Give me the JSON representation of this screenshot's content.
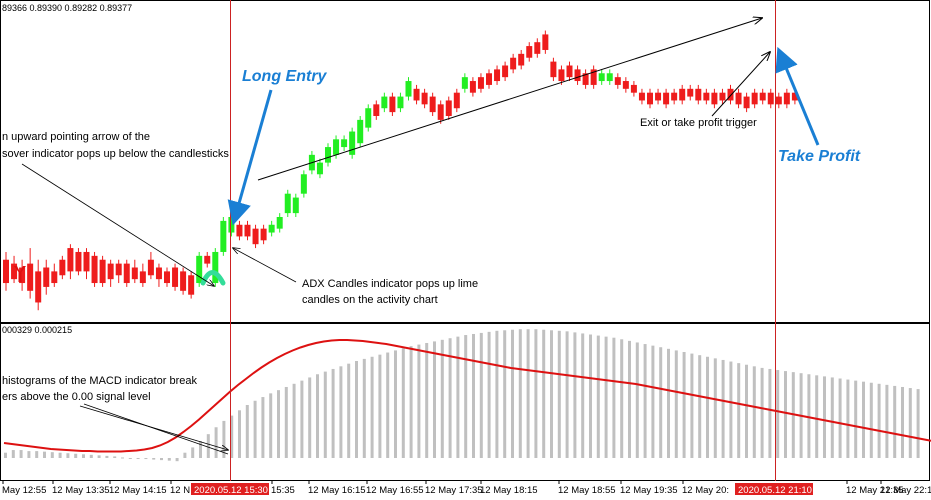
{
  "chart_data": [
    {
      "type": "candlestick",
      "header": "89366 0.89390 0.89282 0.89377",
      "bull_color": "#22ee22",
      "bear_color": "#ee1c1c",
      "candles": [
        {
          "o": 0.8935,
          "c": 0.8929,
          "h": 0.8937,
          "l": 0.8927
        },
        {
          "o": 0.8934,
          "c": 0.893,
          "h": 0.8936,
          "l": 0.8929
        },
        {
          "o": 0.8933,
          "c": 0.8929,
          "h": 0.8935,
          "l": 0.8927
        },
        {
          "o": 0.8934,
          "c": 0.8927,
          "h": 0.8938,
          "l": 0.8925
        },
        {
          "o": 0.8932,
          "c": 0.8924,
          "h": 0.8935,
          "l": 0.8922
        },
        {
          "o": 0.8933,
          "c": 0.8928,
          "h": 0.8935,
          "l": 0.8926
        },
        {
          "o": 0.8932,
          "c": 0.8929,
          "h": 0.8934,
          "l": 0.8928
        },
        {
          "o": 0.8935,
          "c": 0.8931,
          "h": 0.8936,
          "l": 0.893
        },
        {
          "o": 0.8938,
          "c": 0.8932,
          "h": 0.8939,
          "l": 0.893
        },
        {
          "o": 0.8937,
          "c": 0.8932,
          "h": 0.8938,
          "l": 0.8931
        },
        {
          "o": 0.8937,
          "c": 0.8932,
          "h": 0.8938,
          "l": 0.893
        },
        {
          "o": 0.8936,
          "c": 0.8929,
          "h": 0.8937,
          "l": 0.8928
        },
        {
          "o": 0.8935,
          "c": 0.8929,
          "h": 0.8936,
          "l": 0.8928
        },
        {
          "o": 0.8934,
          "c": 0.893,
          "h": 0.8935,
          "l": 0.8928
        },
        {
          "o": 0.8934,
          "c": 0.8931,
          "h": 0.8935,
          "l": 0.8929
        },
        {
          "o": 0.8934,
          "c": 0.8929,
          "h": 0.8935,
          "l": 0.8928
        },
        {
          "o": 0.8933,
          "c": 0.893,
          "h": 0.8935,
          "l": 0.8929
        },
        {
          "o": 0.8932,
          "c": 0.8929,
          "h": 0.8934,
          "l": 0.8928
        },
        {
          "o": 0.8935,
          "c": 0.8931,
          "h": 0.8937,
          "l": 0.893
        },
        {
          "o": 0.8933,
          "c": 0.893,
          "h": 0.8934,
          "l": 0.8928
        },
        {
          "o": 0.8932,
          "c": 0.8929,
          "h": 0.8933,
          "l": 0.8928
        },
        {
          "o": 0.8933,
          "c": 0.8928,
          "h": 0.8934,
          "l": 0.8927
        },
        {
          "o": 0.8932,
          "c": 0.8927,
          "h": 0.8933,
          "l": 0.8926
        },
        {
          "o": 0.8931,
          "c": 0.8926,
          "h": 0.8932,
          "l": 0.8925
        },
        {
          "o": 0.8929,
          "c": 0.8936,
          "h": 0.8937,
          "l": 0.8928
        },
        {
          "o": 0.8936,
          "c": 0.8934,
          "h": 0.8937,
          "l": 0.8933
        },
        {
          "o": 0.8929,
          "c": 0.8937,
          "h": 0.8938,
          "l": 0.8928
        },
        {
          "o": 0.8937,
          "c": 0.8945,
          "h": 0.8946,
          "l": 0.8936
        },
        {
          "o": 0.8942,
          "c": 0.8946,
          "h": 0.8947,
          "l": 0.8941
        },
        {
          "o": 0.8944,
          "c": 0.8941,
          "h": 0.8945,
          "l": 0.894
        },
        {
          "o": 0.8944,
          "c": 0.8941,
          "h": 0.8945,
          "l": 0.894
        },
        {
          "o": 0.8943,
          "c": 0.8939,
          "h": 0.8944,
          "l": 0.8938
        },
        {
          "o": 0.8943,
          "c": 0.894,
          "h": 0.8944,
          "l": 0.8939
        },
        {
          "o": 0.8942,
          "c": 0.8944,
          "h": 0.8945,
          "l": 0.8941
        },
        {
          "o": 0.8943,
          "c": 0.8946,
          "h": 0.8947,
          "l": 0.8942
        },
        {
          "o": 0.8947,
          "c": 0.8952,
          "h": 0.8953,
          "l": 0.8946
        },
        {
          "o": 0.8947,
          "c": 0.8951,
          "h": 0.8952,
          "l": 0.8946
        },
        {
          "o": 0.8952,
          "c": 0.8957,
          "h": 0.8958,
          "l": 0.8951
        },
        {
          "o": 0.8958,
          "c": 0.8962,
          "h": 0.8963,
          "l": 0.8957
        },
        {
          "o": 0.8957,
          "c": 0.896,
          "h": 0.8961,
          "l": 0.8956
        },
        {
          "o": 0.896,
          "c": 0.8964,
          "h": 0.8965,
          "l": 0.8959
        },
        {
          "o": 0.8962,
          "c": 0.8966,
          "h": 0.8967,
          "l": 0.8961
        },
        {
          "o": 0.8964,
          "c": 0.8966,
          "h": 0.8967,
          "l": 0.8963
        },
        {
          "o": 0.8962,
          "c": 0.8968,
          "h": 0.8969,
          "l": 0.8961
        },
        {
          "o": 0.8965,
          "c": 0.8971,
          "h": 0.8972,
          "l": 0.8964
        },
        {
          "o": 0.8969,
          "c": 0.8974,
          "h": 0.8975,
          "l": 0.8968
        },
        {
          "o": 0.8975,
          "c": 0.8972,
          "h": 0.8976,
          "l": 0.8971
        },
        {
          "o": 0.8974,
          "c": 0.8977,
          "h": 0.8978,
          "l": 0.8973
        },
        {
          "o": 0.8977,
          "c": 0.8973,
          "h": 0.8978,
          "l": 0.8972
        },
        {
          "o": 0.8974,
          "c": 0.8977,
          "h": 0.8978,
          "l": 0.8973
        },
        {
          "o": 0.8977,
          "c": 0.8981,
          "h": 0.8982,
          "l": 0.8976
        },
        {
          "o": 0.8979,
          "c": 0.8976,
          "h": 0.898,
          "l": 0.8975
        },
        {
          "o": 0.8978,
          "c": 0.8975,
          "h": 0.8979,
          "l": 0.8974
        },
        {
          "o": 0.8977,
          "c": 0.8973,
          "h": 0.8978,
          "l": 0.8972
        },
        {
          "o": 0.8975,
          "c": 0.8971,
          "h": 0.8976,
          "l": 0.897
        },
        {
          "o": 0.8976,
          "c": 0.8972,
          "h": 0.8977,
          "l": 0.8971
        },
        {
          "o": 0.8978,
          "c": 0.8974,
          "h": 0.8979,
          "l": 0.8973
        },
        {
          "o": 0.8979,
          "c": 0.8982,
          "h": 0.8983,
          "l": 0.8978
        },
        {
          "o": 0.8981,
          "c": 0.8978,
          "h": 0.8982,
          "l": 0.8977
        },
        {
          "o": 0.8982,
          "c": 0.8979,
          "h": 0.8983,
          "l": 0.8978
        },
        {
          "o": 0.8983,
          "c": 0.898,
          "h": 0.8984,
          "l": 0.8979
        },
        {
          "o": 0.8984,
          "c": 0.8981,
          "h": 0.8985,
          "l": 0.898
        },
        {
          "o": 0.8985,
          "c": 0.8982,
          "h": 0.8986,
          "l": 0.8981
        },
        {
          "o": 0.8987,
          "c": 0.8984,
          "h": 0.8988,
          "l": 0.8983
        },
        {
          "o": 0.8988,
          "c": 0.8985,
          "h": 0.8989,
          "l": 0.8984
        },
        {
          "o": 0.899,
          "c": 0.8987,
          "h": 0.8991,
          "l": 0.8986
        },
        {
          "o": 0.8991,
          "c": 0.8988,
          "h": 0.8992,
          "l": 0.8987
        },
        {
          "o": 0.8993,
          "c": 0.8989,
          "h": 0.8994,
          "l": 0.8988
        },
        {
          "o": 0.8986,
          "c": 0.8982,
          "h": 0.8987,
          "l": 0.8981
        },
        {
          "o": 0.8984,
          "c": 0.8981,
          "h": 0.8985,
          "l": 0.898
        },
        {
          "o": 0.8985,
          "c": 0.8982,
          "h": 0.8986,
          "l": 0.8981
        },
        {
          "o": 0.8984,
          "c": 0.8981,
          "h": 0.8985,
          "l": 0.898
        },
        {
          "o": 0.8983,
          "c": 0.898,
          "h": 0.8984,
          "l": 0.8979
        },
        {
          "o": 0.8984,
          "c": 0.898,
          "h": 0.8985,
          "l": 0.8979
        },
        {
          "o": 0.8981,
          "c": 0.8983,
          "h": 0.8984,
          "l": 0.898
        },
        {
          "o": 0.8981,
          "c": 0.8983,
          "h": 0.8984,
          "l": 0.898
        },
        {
          "o": 0.8982,
          "c": 0.898,
          "h": 0.8983,
          "l": 0.8979
        },
        {
          "o": 0.8981,
          "c": 0.8979,
          "h": 0.8982,
          "l": 0.8978
        },
        {
          "o": 0.898,
          "c": 0.8978,
          "h": 0.8981,
          "l": 0.8977
        },
        {
          "o": 0.8978,
          "c": 0.8976,
          "h": 0.8979,
          "l": 0.8975
        },
        {
          "o": 0.8978,
          "c": 0.8975,
          "h": 0.8979,
          "l": 0.8974
        },
        {
          "o": 0.8978,
          "c": 0.8976,
          "h": 0.8979,
          "l": 0.8975
        },
        {
          "o": 0.8978,
          "c": 0.8975,
          "h": 0.8979,
          "l": 0.8974
        },
        {
          "o": 0.8978,
          "c": 0.8976,
          "h": 0.8979,
          "l": 0.8975
        },
        {
          "o": 0.8979,
          "c": 0.8976,
          "h": 0.898,
          "l": 0.8975
        },
        {
          "o": 0.8979,
          "c": 0.8977,
          "h": 0.898,
          "l": 0.8976
        },
        {
          "o": 0.8979,
          "c": 0.8976,
          "h": 0.898,
          "l": 0.8975
        },
        {
          "o": 0.8978,
          "c": 0.8976,
          "h": 0.8979,
          "l": 0.8975
        },
        {
          "o": 0.8978,
          "c": 0.8975,
          "h": 0.8979,
          "l": 0.8974
        },
        {
          "o": 0.8978,
          "c": 0.8976,
          "h": 0.8979,
          "l": 0.8975
        },
        {
          "o": 0.8979,
          "c": 0.8976,
          "h": 0.898,
          "l": 0.8975
        },
        {
          "o": 0.8978,
          "c": 0.8975,
          "h": 0.8979,
          "l": 0.8974
        },
        {
          "o": 0.8977,
          "c": 0.8974,
          "h": 0.8978,
          "l": 0.8973
        },
        {
          "o": 0.8978,
          "c": 0.8975,
          "h": 0.8979,
          "l": 0.8974
        },
        {
          "o": 0.8978,
          "c": 0.8976,
          "h": 0.8979,
          "l": 0.8975
        },
        {
          "o": 0.8978,
          "c": 0.8975,
          "h": 0.8979,
          "l": 0.8974
        },
        {
          "o": 0.8977,
          "c": 0.8975,
          "h": 0.8978,
          "l": 0.8974
        },
        {
          "o": 0.8978,
          "c": 0.8975,
          "h": 0.8979,
          "l": 0.8974
        },
        {
          "o": 0.8978,
          "c": 0.8976,
          "h": 0.8979,
          "l": 0.8975
        }
      ]
    },
    {
      "type": "bar",
      "header": "000329 0.000215",
      "histogram": [
        10,
        15,
        15,
        13,
        13,
        12,
        11,
        10,
        9,
        8,
        7,
        6,
        5,
        4,
        3,
        1,
        0,
        -1,
        -2,
        -3,
        -4,
        -5,
        -6,
        10,
        20,
        32,
        45,
        58,
        70,
        80,
        90,
        100,
        108,
        115,
        122,
        128,
        134,
        140,
        146,
        152,
        158,
        163,
        168,
        173,
        178,
        183,
        187,
        191,
        195,
        199,
        203,
        207,
        211,
        214,
        217,
        220,
        223,
        226,
        229,
        232,
        234,
        236,
        238,
        240,
        241,
        242,
        243,
        243,
        243,
        242,
        241,
        240,
        239,
        237,
        235,
        233,
        231,
        229,
        227,
        224,
        221,
        218,
        215,
        212,
        209,
        206,
        203,
        200,
        197,
        194,
        191,
        188,
        185,
        182,
        179,
        176,
        173,
        170,
        168,
        166,
        164,
        162,
        160,
        158,
        156,
        154,
        152,
        150,
        148,
        146,
        144,
        142,
        140,
        138,
        136,
        134,
        132,
        130
      ],
      "signal": [
        30,
        28,
        26,
        24,
        22,
        20,
        18,
        17,
        16,
        15,
        14,
        14,
        13,
        13,
        13,
        13,
        14,
        15,
        17,
        20,
        25,
        32,
        41,
        52,
        64,
        77,
        91,
        105,
        119,
        133,
        146,
        158,
        170,
        181,
        191,
        200,
        208,
        215,
        221,
        226,
        230,
        233,
        235,
        236,
        236,
        235,
        234,
        232,
        230,
        228,
        225,
        222,
        219,
        216,
        213,
        210,
        207,
        204,
        201,
        198,
        195,
        192,
        189,
        186,
        183,
        180,
        178,
        176,
        174,
        172,
        170,
        168,
        166,
        164,
        162,
        160,
        158,
        156,
        154,
        152,
        150,
        148,
        145,
        142,
        139,
        136,
        133,
        130,
        127,
        124,
        121,
        118,
        115,
        112,
        109,
        106,
        103,
        100,
        97,
        94,
        91,
        88,
        85,
        82,
        79,
        76,
        73,
        70,
        67,
        64,
        61,
        58,
        55,
        52,
        49,
        46,
        43,
        40,
        37,
        34
      ],
      "histogram_color": "#c0c0c0",
      "signal_color": "#dd1111"
    }
  ],
  "x_axis": {
    "ticks": [
      "May 12:55",
      "12 May 13:35",
      "12 May 14:15",
      "12 N",
      "15:35",
      "12 May 16:15",
      "12 May 16:55",
      "12 May 17:35",
      "12 May 18:15",
      "12 May 18:55",
      "12 May 19:35",
      "12 May 20:",
      "12 May 21:35",
      "12 May 22:1"
    ],
    "highlight_entry": "2020.05.12 15:30",
    "highlight_exit": "2020.05.12 21:10"
  },
  "annotations": {
    "long_entry": "Long Entry",
    "take_profit": "Take Profit",
    "exit_trigger": "Exit or take profit trigger",
    "arrow_line1": "n upward pointing arrow of the",
    "arrow_line2": "sover indicator pops up below the candlesticks",
    "adx_line1": "ADX Candles indicator pops up lime",
    "adx_line2": "candles on the activity chart",
    "macd_line1": "histograms of the MACD indicator break",
    "macd_line2": "ers above the 0.00 signal level"
  },
  "colors": {
    "vline": "#cc2222",
    "tag_bg": "#e02020",
    "annotation_blue": "#1a7fd4",
    "buy_arrow": "#33dd99"
  }
}
